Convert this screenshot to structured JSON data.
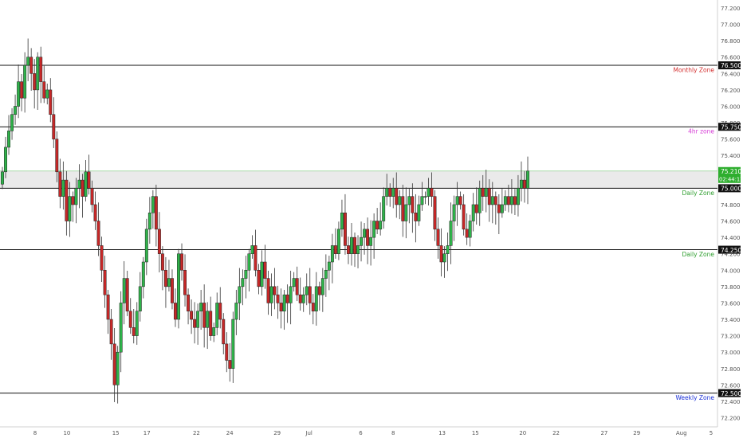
{
  "chart_data": {
    "type": "candlestick",
    "ylim": [
      72.1,
      77.3
    ],
    "y_ticks": [
      77.2,
      77.0,
      76.8,
      76.6,
      76.4,
      76.2,
      76.0,
      75.8,
      75.6,
      75.4,
      75.2,
      75.0,
      74.8,
      74.6,
      74.4,
      74.2,
      74.0,
      73.8,
      73.6,
      73.4,
      73.2,
      73.0,
      72.8,
      72.6,
      72.4,
      72.2
    ],
    "y_tick_labels": [
      "77.200",
      "77.000",
      "76.800",
      "76.600",
      "76.400",
      "76.200",
      "76.000",
      "75.800",
      "75.600",
      "75.400",
      "75.200",
      "75.000",
      "74.800",
      "74.600",
      "74.400",
      "74.200",
      "74.000",
      "73.800",
      "73.600",
      "73.400",
      "73.200",
      "73.000",
      "72.800",
      "72.600",
      "72.400",
      "72.200"
    ],
    "x_ticks": [
      {
        "label": "8",
        "pos": 0.045
      },
      {
        "label": "10",
        "pos": 0.09
      },
      {
        "label": "15",
        "pos": 0.159
      },
      {
        "label": "17",
        "pos": 0.203
      },
      {
        "label": "22",
        "pos": 0.273
      },
      {
        "label": "24",
        "pos": 0.32
      },
      {
        "label": "29",
        "pos": 0.387
      },
      {
        "label": "Jul",
        "pos": 0.432
      },
      {
        "label": "6",
        "pos": 0.505
      },
      {
        "label": "8",
        "pos": 0.551
      },
      {
        "label": "13",
        "pos": 0.62
      },
      {
        "label": "15",
        "pos": 0.667
      },
      {
        "label": "20",
        "pos": 0.734
      },
      {
        "label": "22",
        "pos": 0.781
      },
      {
        "label": "27",
        "pos": 0.849
      },
      {
        "label": "29",
        "pos": 0.895
      },
      {
        "label": "Aug",
        "pos": 0.958
      },
      {
        "label": "5",
        "pos": 1.0
      }
    ],
    "levels": [
      {
        "label": "76.500",
        "zone": "Monthly Zone",
        "value": 76.5,
        "zone_color": "#d32f2f"
      },
      {
        "label": "75.750",
        "zone": "4hr zone",
        "value": 75.75,
        "zone_color": "#d63fd6"
      },
      {
        "label": "75.000",
        "zone": "Daily Zone",
        "value": 75.0,
        "zone_color": "#2e9e2e"
      },
      {
        "label": "74.250",
        "zone": "Daily Zone",
        "value": 74.25,
        "zone_color": "#2e9e2e"
      },
      {
        "label": "72.500",
        "zone": "Weekly Zone",
        "value": 72.5,
        "zone_color": "#1a2fd6"
      }
    ],
    "current_price": {
      "label": "75.210",
      "value": 75.21,
      "countdown": "02:44:17",
      "color": "#2eae2e"
    },
    "shaded_zone": {
      "from": 75.0,
      "to": 75.21
    },
    "candles_close": [
      75.2,
      75.5,
      75.7,
      75.9,
      76.0,
      76.3,
      76.1,
      76.5,
      76.6,
      76.4,
      76.2,
      76.6,
      76.3,
      76.1,
      76.2,
      75.9,
      75.6,
      75.2,
      74.9,
      75.1,
      74.6,
      74.9,
      74.8,
      75.0,
      75.1,
      74.9,
      75.2,
      75.0,
      74.8,
      74.6,
      74.3,
      74.0,
      73.7,
      73.4,
      73.1,
      72.6,
      73.0,
      73.6,
      73.9,
      73.5,
      73.3,
      73.2,
      73.5,
      73.8,
      74.1,
      74.5,
      74.7,
      74.9,
      74.5,
      74.2,
      74.0,
      73.8,
      73.9,
      73.6,
      73.4,
      74.2,
      74.0,
      73.7,
      73.5,
      73.4,
      73.3,
      73.5,
      73.6,
      73.3,
      73.5,
      73.2,
      73.3,
      73.6,
      73.4,
      73.1,
      72.9,
      72.8,
      73.4,
      73.6,
      73.8,
      73.9,
      74.0,
      74.2,
      74.3,
      74.0,
      73.8,
      74.1,
      73.9,
      73.6,
      73.8,
      73.7,
      73.6,
      73.5,
      73.7,
      73.6,
      73.8,
      73.9,
      73.7,
      73.6,
      73.7,
      73.8,
      73.6,
      73.5,
      73.8,
      73.7,
      73.9,
      74.0,
      74.1,
      74.3,
      74.2,
      74.5,
      74.7,
      74.3,
      74.2,
      74.4,
      74.2,
      74.3,
      74.4,
      74.5,
      74.3,
      74.4,
      74.6,
      74.5,
      74.6,
      74.9,
      75.0,
      74.9,
      75.0,
      74.8,
      74.9,
      74.6,
      74.8,
      74.9,
      74.7,
      74.6,
      74.8,
      74.9,
      74.9,
      75.0,
      74.9,
      74.5,
      74.3,
      74.1,
      74.2,
      74.3,
      74.6,
      74.8,
      74.9,
      74.8,
      74.5,
      74.4,
      74.6,
      74.8,
      74.7,
      75.0,
      74.9,
      75.0,
      74.8,
      74.9,
      74.8,
      74.7,
      74.8,
      74.9,
      74.8,
      74.9,
      74.8,
      75.0,
      75.1,
      75.0,
      75.21
    ]
  }
}
